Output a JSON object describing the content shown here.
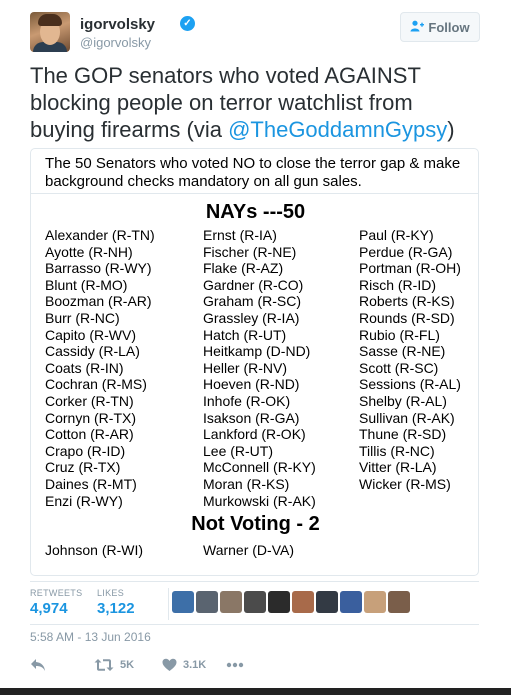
{
  "user": {
    "name": "igorvolsky",
    "handle": "@igorvolsky",
    "verified": true
  },
  "follow_button": {
    "label": "Follow"
  },
  "tweet": {
    "text_before": "The GOP senators who voted AGAINST blocking people on terror watchlist from buying firearms (via ",
    "mention": "@TheGoddamnGypsy",
    "text_after": ")"
  },
  "image": {
    "caption": "The 50 Senators who voted NO to close the terror gap & make background checks mandatory on all gun sales.",
    "nays_heading": "NAYs ---50",
    "columns": [
      [
        "Alexander (R-TN)",
        "Ayotte (R-NH)",
        "Barrasso (R-WY)",
        "Blunt (R-MO)",
        "Boozman (R-AR)",
        "Burr (R-NC)",
        "Capito (R-WV)",
        "Cassidy (R-LA)",
        "Coats (R-IN)",
        "Cochran (R-MS)",
        "Corker (R-TN)",
        "Cornyn (R-TX)",
        "Cotton (R-AR)",
        "Crapo (R-ID)",
        "Cruz (R-TX)",
        "Daines (R-MT)",
        "Enzi (R-WY)"
      ],
      [
        "Ernst (R-IA)",
        "Fischer (R-NE)",
        "Flake (R-AZ)",
        "Gardner (R-CO)",
        "Graham (R-SC)",
        "Grassley (R-IA)",
        "Hatch (R-UT)",
        "Heitkamp (D-ND)",
        "Heller (R-NV)",
        "Hoeven (R-ND)",
        "Inhofe (R-OK)",
        "Isakson (R-GA)",
        "Lankford (R-OK)",
        "Lee (R-UT)",
        "McConnell (R-KY)",
        "Moran (R-KS)",
        "Murkowski (R-AK)"
      ],
      [
        "Paul (R-KY)",
        "Perdue (R-GA)",
        "Portman (R-OH)",
        "Risch (R-ID)",
        "Roberts (R-KS)",
        "Rounds (R-SD)",
        "Rubio (R-FL)",
        "Sasse (R-NE)",
        "Scott (R-SC)",
        "Sessions (R-AL)",
        "Shelby (R-AL)",
        "Sullivan (R-AK)",
        "Thune (R-SD)",
        "Tillis (R-NC)",
        "Vitter (R-LA)",
        "Wicker (R-MS)"
      ]
    ],
    "not_voting_heading": "Not Voting - 2",
    "not_voting": [
      "Johnson (R-WI)",
      "Warner (D-VA)"
    ]
  },
  "stats": {
    "retweets_label": "RETWEETS",
    "retweets_value": "4,974",
    "likes_label": "LIKES",
    "likes_value": "3,122"
  },
  "liker_colors": [
    "#3d6fa8",
    "#5a6470",
    "#8a7766",
    "#4b4b4b",
    "#2b2b2b",
    "#a86a4a",
    "#333a44",
    "#3a5f9e",
    "#c7a07a",
    "#7a5e4a"
  ],
  "timestamp": "5:58 AM - 13 Jun 2016",
  "actions": {
    "retweet_count": "5K",
    "like_count": "3.1K"
  },
  "colors": {
    "accent": "#1b95e0",
    "muted": "#8899a6",
    "border": "#e1e8ed"
  }
}
